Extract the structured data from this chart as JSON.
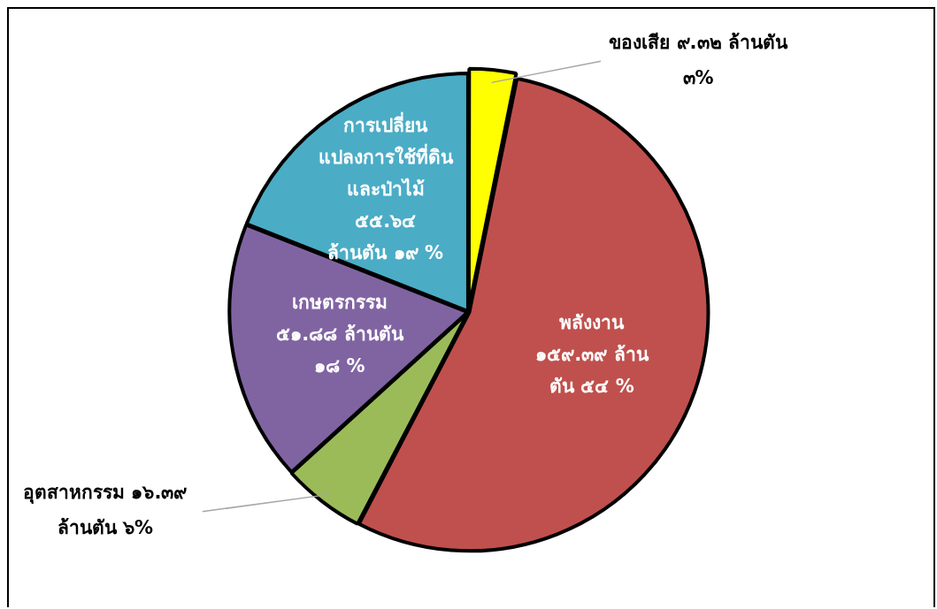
{
  "chart_data": {
    "type": "pie",
    "categories": [
      "ของเสีย",
      "พลังงาน",
      "อุตสาหกรรม",
      "เกษตรกรรม",
      "การเปลี่ยน\nแปลงการใช้ที่ดิน\nและป่าไม้"
    ],
    "values": [
      9.32,
      159.39,
      16.39,
      51.88,
      55.64
    ],
    "colors": [
      "#ffff00",
      "#c0504d",
      "#9bbb59",
      "#8064a2",
      "#4bacc6"
    ],
    "value_labels": [
      "๙.๓๒ ล้านตัน\n๓%",
      "๑๕๙.๓๙ ล้าน\nตัน ๕๔ %",
      "๑๖.๓๙\nล้านตัน ๖%",
      "๕๑.๘๘ ล้านตัน\n๑๘ %",
      "๕๕.๖๔\nล้านตัน ๑๙ %"
    ],
    "legend": false
  }
}
